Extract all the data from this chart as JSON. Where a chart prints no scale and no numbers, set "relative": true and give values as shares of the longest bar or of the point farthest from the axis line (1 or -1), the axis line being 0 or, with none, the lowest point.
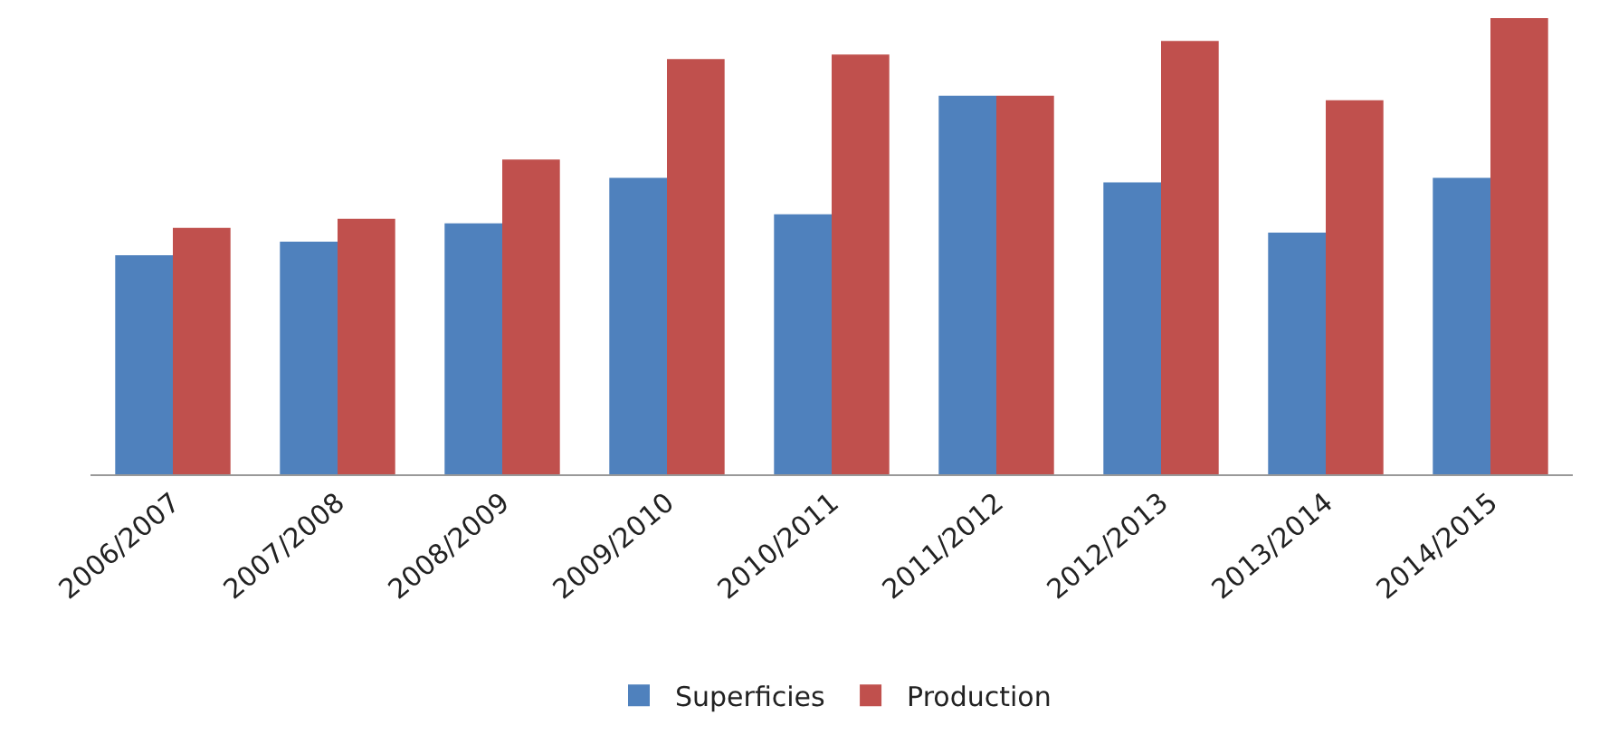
{
  "chart_data": {
    "type": "bar",
    "relative": true,
    "categories": [
      "2006/2007",
      "2007/2008",
      "2008/2009",
      "2009/2010",
      "2010/2011",
      "2011/2012",
      "2012/2013",
      "2013/2014",
      "2014/2015"
    ],
    "series": [
      {
        "name": "Superficies",
        "color": "#4f81bd",
        "values": [
          0.48,
          0.51,
          0.55,
          0.65,
          0.57,
          0.83,
          0.64,
          0.53,
          0.65
        ]
      },
      {
        "name": "Production",
        "color": "#c0504d",
        "values": [
          0.54,
          0.56,
          0.69,
          0.91,
          0.92,
          0.83,
          0.95,
          0.82,
          1.0
        ]
      }
    ],
    "legend": "bottom"
  }
}
